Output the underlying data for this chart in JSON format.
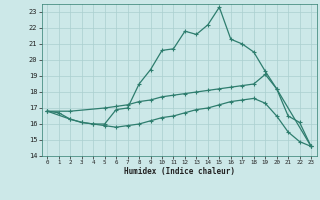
{
  "xlabel": "Humidex (Indice chaleur)",
  "bg_color": "#cce8e8",
  "grid_color": "#aacfcf",
  "line_color": "#2e7d6e",
  "xlim": [
    -0.5,
    23.5
  ],
  "ylim": [
    14,
    23.5
  ],
  "xticks": [
    0,
    1,
    2,
    3,
    4,
    5,
    6,
    7,
    8,
    9,
    10,
    11,
    12,
    13,
    14,
    15,
    16,
    17,
    18,
    19,
    20,
    21,
    22,
    23
  ],
  "yticks": [
    14,
    15,
    16,
    17,
    18,
    19,
    20,
    21,
    22,
    23
  ],
  "line1_x": [
    0,
    1,
    2,
    3,
    4,
    5,
    6,
    7,
    8,
    9,
    10,
    11,
    12,
    13,
    14,
    15,
    16,
    17,
    18,
    19,
    20,
    21,
    22,
    23
  ],
  "line1_y": [
    16.8,
    16.7,
    16.3,
    16.1,
    16.0,
    16.0,
    16.9,
    17.0,
    18.5,
    19.4,
    20.6,
    20.7,
    21.8,
    21.6,
    22.2,
    23.3,
    21.3,
    21.0,
    20.5,
    19.3,
    18.2,
    16.5,
    16.1,
    14.6
  ],
  "line2_x": [
    0,
    2,
    5,
    6,
    7,
    8,
    9,
    10,
    11,
    12,
    13,
    14,
    15,
    16,
    17,
    18,
    19,
    20,
    23
  ],
  "line2_y": [
    16.8,
    16.8,
    17.0,
    17.1,
    17.2,
    17.4,
    17.5,
    17.7,
    17.8,
    17.9,
    18.0,
    18.1,
    18.2,
    18.3,
    18.4,
    18.5,
    19.1,
    18.2,
    14.6
  ],
  "line3_x": [
    0,
    2,
    3,
    4,
    5,
    6,
    7,
    8,
    9,
    10,
    11,
    12,
    13,
    14,
    15,
    16,
    17,
    18,
    19,
    20,
    21,
    22,
    23
  ],
  "line3_y": [
    16.8,
    16.3,
    16.1,
    16.0,
    15.9,
    15.8,
    15.9,
    16.0,
    16.2,
    16.4,
    16.5,
    16.7,
    16.9,
    17.0,
    17.2,
    17.4,
    17.5,
    17.6,
    17.3,
    16.5,
    15.5,
    14.9,
    14.6
  ]
}
